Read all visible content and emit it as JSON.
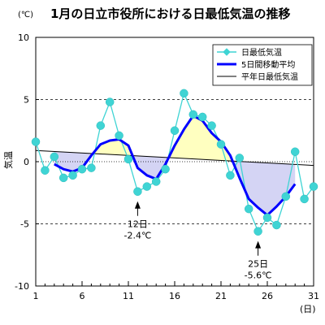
{
  "unit_label": "(℃)",
  "title": "1月の日立市役所における日最低気温の推移",
  "chart_data": {
    "type": "line",
    "ylabel": "気温",
    "xlabel": "(日)",
    "ylim": [
      -10,
      10
    ],
    "xlim": [
      1,
      31
    ],
    "ytick_labels": [
      "10",
      "5",
      "0",
      "-5",
      "-10"
    ],
    "ytick_values": [
      10,
      5,
      0,
      -5,
      -10
    ],
    "xtick_labels": [
      "1",
      "6",
      "11",
      "16",
      "21",
      "26",
      "31"
    ],
    "xtick_values": [
      1,
      6,
      11,
      16,
      21,
      26,
      31
    ],
    "grid": "dashed horizontal at 5 and -5",
    "x": [
      1,
      2,
      3,
      4,
      5,
      6,
      7,
      8,
      9,
      10,
      11,
      12,
      13,
      14,
      15,
      16,
      17,
      18,
      19,
      20,
      21,
      22,
      23,
      24,
      25,
      26,
      27,
      28,
      29,
      30,
      31
    ],
    "series": [
      {
        "name": "日最低気温",
        "color": "#3fd4d4",
        "values": [
          1.6,
          -0.7,
          0.4,
          -1.3,
          -1.1,
          -0.6,
          -0.5,
          2.9,
          4.8,
          2.1,
          0.2,
          -2.4,
          -2.0,
          -1.6,
          -0.6,
          2.5,
          5.5,
          3.8,
          3.6,
          2.9,
          1.4,
          -1.1,
          0.3,
          -3.8,
          -5.6,
          -4.5,
          -5.1,
          -2.8,
          0.8,
          -3.0,
          -2.0
        ]
      },
      {
        "name": "5日間移動平均",
        "color": "#0000ff",
        "values": [
          null,
          null,
          -0.2,
          -0.6,
          -0.8,
          -0.5,
          0.5,
          1.4,
          1.7,
          1.8,
          1.3,
          -0.5,
          -1.1,
          -1.4,
          -0.2,
          1.3,
          2.6,
          3.7,
          3.3,
          2.3,
          1.6,
          0.5,
          -1.3,
          -3.0,
          -3.7,
          -4.3,
          -3.6,
          -2.8,
          -1.8,
          null,
          null
        ]
      },
      {
        "name": "平年日最低気温",
        "color": "#000000",
        "from": [
          1,
          0.9
        ],
        "to": [
          31,
          -0.3
        ]
      }
    ],
    "annotations": [
      {
        "lines": [
          "12日",
          "-2.4℃"
        ],
        "day": 12,
        "value": -2.4
      },
      {
        "lines": [
          "25日",
          "-5.6℃"
        ],
        "day": 25,
        "value": -5.6
      }
    ],
    "legend_position": "top-right",
    "fill_above_color": "#ffffc0",
    "fill_below_color": "#d4d4f4"
  }
}
